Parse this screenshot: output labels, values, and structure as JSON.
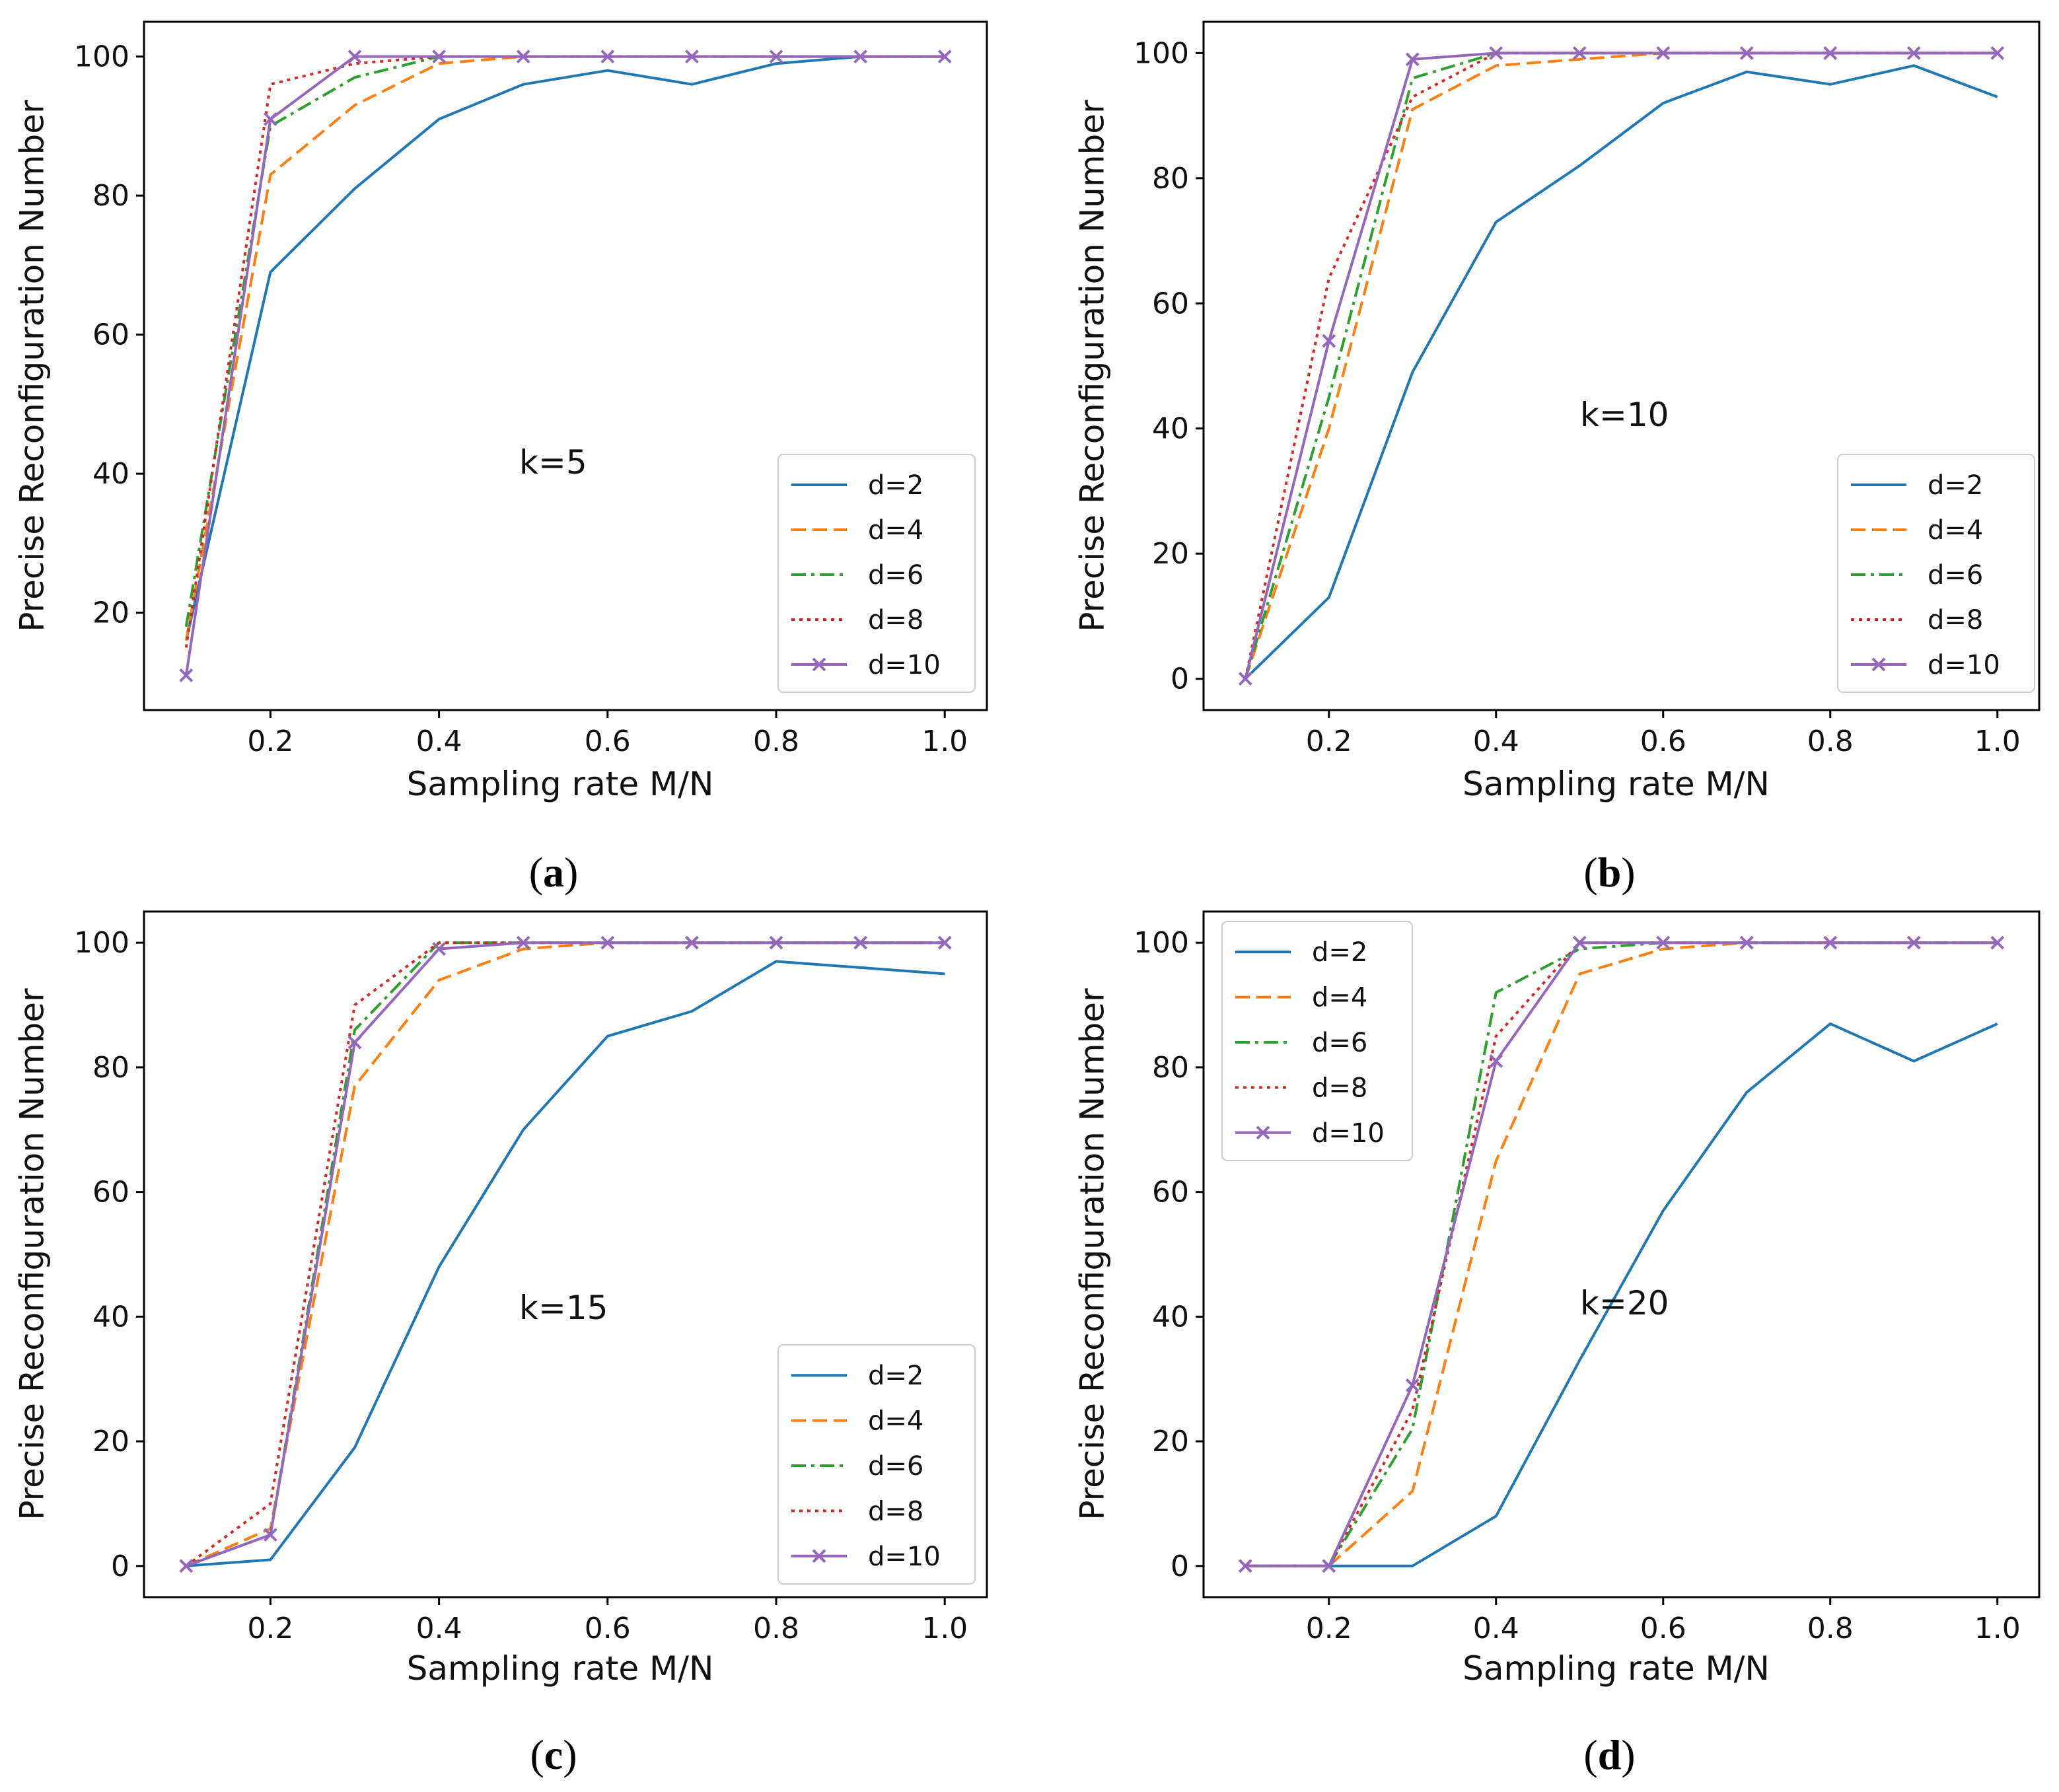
{
  "colors": {
    "d2": "#1f77b4",
    "d4": "#ff7f0e",
    "d6": "#2ca02c",
    "d8": "#d62728",
    "d10": "#9467bd",
    "axis": "#000000",
    "legend_border": "#cccccc"
  },
  "chart_data": [
    {
      "id": "a",
      "type": "line",
      "caption": "a",
      "annotation": "k=5",
      "xlabel": "Sampling rate M/N",
      "ylabel": "Precise Reconfiguration Number",
      "x": [
        0.1,
        0.2,
        0.3,
        0.4,
        0.5,
        0.6,
        0.7,
        0.8,
        0.9,
        1.0
      ],
      "xlim": [
        0.05,
        1.05
      ],
      "ylim": [
        6,
        105
      ],
      "xticks": [
        0.2,
        0.4,
        0.6,
        0.8,
        1.0
      ],
      "xtick_labels": [
        "0.2",
        "0.4",
        "0.6",
        "0.8",
        "1.0"
      ],
      "yticks": [
        20,
        40,
        60,
        80,
        100
      ],
      "ytick_labels": [
        "20",
        "40",
        "60",
        "80",
        "100"
      ],
      "legend_position": "lower-right",
      "series": [
        {
          "name": "d=2",
          "style": "solid",
          "color_key": "d2",
          "values": [
            16,
            69,
            81,
            91,
            96,
            98,
            96,
            99,
            100,
            100
          ]
        },
        {
          "name": "d=4",
          "style": "dashed",
          "color_key": "d4",
          "values": [
            16,
            83,
            93,
            99,
            100,
            100,
            100,
            100,
            100,
            100
          ]
        },
        {
          "name": "d=6",
          "style": "dashdot",
          "color_key": "d6",
          "values": [
            18,
            90,
            97,
            100,
            100,
            100,
            100,
            100,
            100,
            100
          ]
        },
        {
          "name": "d=8",
          "style": "dotted",
          "color_key": "d8",
          "values": [
            15,
            96,
            99,
            100,
            100,
            100,
            100,
            100,
            100,
            100
          ]
        },
        {
          "name": "d=10",
          "style": "solid-x",
          "color_key": "d10",
          "values": [
            11,
            91,
            100,
            100,
            100,
            100,
            100,
            100,
            100,
            100
          ]
        }
      ]
    },
    {
      "id": "b",
      "type": "line",
      "caption": "b",
      "annotation": "k=10",
      "xlabel": "Sampling rate M/N",
      "ylabel": "Precise Reconfiguration Number",
      "x": [
        0.1,
        0.2,
        0.3,
        0.4,
        0.5,
        0.6,
        0.7,
        0.8,
        0.9,
        1.0
      ],
      "xlim": [
        0.05,
        1.05
      ],
      "ylim": [
        -5,
        105
      ],
      "xticks": [
        0.2,
        0.4,
        0.6,
        0.8,
        1.0
      ],
      "xtick_labels": [
        "0.2",
        "0.4",
        "0.6",
        "0.8",
        "1.0"
      ],
      "yticks": [
        0,
        20,
        40,
        60,
        80,
        100
      ],
      "ytick_labels": [
        "0",
        "20",
        "40",
        "60",
        "80",
        "100"
      ],
      "legend_position": "lower-right",
      "series": [
        {
          "name": "d=2",
          "style": "solid",
          "color_key": "d2",
          "values": [
            0,
            13,
            49,
            73,
            82,
            92,
            97,
            95,
            98,
            93
          ]
        },
        {
          "name": "d=4",
          "style": "dashed",
          "color_key": "d4",
          "values": [
            0,
            40,
            91,
            98,
            99,
            100,
            100,
            100,
            100,
            100
          ]
        },
        {
          "name": "d=6",
          "style": "dashdot",
          "color_key": "d6",
          "values": [
            0,
            45,
            96,
            100,
            100,
            100,
            100,
            100,
            100,
            100
          ]
        },
        {
          "name": "d=8",
          "style": "dotted",
          "color_key": "d8",
          "values": [
            0,
            64,
            93,
            100,
            100,
            100,
            100,
            100,
            100,
            100
          ]
        },
        {
          "name": "d=10",
          "style": "solid-x",
          "color_key": "d10",
          "values": [
            0,
            54,
            99,
            100,
            100,
            100,
            100,
            100,
            100,
            100
          ]
        }
      ]
    },
    {
      "id": "c",
      "type": "line",
      "caption": "c",
      "annotation": "k=15",
      "xlabel": "Sampling rate M/N",
      "ylabel": "Precise Reconfiguration Number",
      "x": [
        0.1,
        0.2,
        0.3,
        0.4,
        0.5,
        0.6,
        0.7,
        0.8,
        0.9,
        1.0
      ],
      "xlim": [
        0.05,
        1.05
      ],
      "ylim": [
        -5,
        105
      ],
      "xticks": [
        0.2,
        0.4,
        0.6,
        0.8,
        1.0
      ],
      "xtick_labels": [
        "0.2",
        "0.4",
        "0.6",
        "0.8",
        "1.0"
      ],
      "yticks": [
        0,
        20,
        40,
        60,
        80,
        100
      ],
      "ytick_labels": [
        "0",
        "20",
        "40",
        "60",
        "80",
        "100"
      ],
      "legend_position": "lower-right",
      "series": [
        {
          "name": "d=2",
          "style": "solid",
          "color_key": "d2",
          "values": [
            0,
            1,
            19,
            48,
            70,
            85,
            89,
            97,
            96,
            95
          ]
        },
        {
          "name": "d=4",
          "style": "dashed",
          "color_key": "d4",
          "values": [
            0,
            6,
            77,
            94,
            99,
            100,
            100,
            100,
            100,
            100
          ]
        },
        {
          "name": "d=6",
          "style": "dashdot",
          "color_key": "d6",
          "values": [
            0,
            5,
            86,
            100,
            100,
            100,
            100,
            100,
            100,
            100
          ]
        },
        {
          "name": "d=8",
          "style": "dotted",
          "color_key": "d8",
          "values": [
            0,
            10,
            90,
            100,
            100,
            100,
            100,
            100,
            100,
            100
          ]
        },
        {
          "name": "d=10",
          "style": "solid-x",
          "color_key": "d10",
          "values": [
            0,
            5,
            84,
            99,
            100,
            100,
            100,
            100,
            100,
            100
          ]
        }
      ]
    },
    {
      "id": "d",
      "type": "line",
      "caption": "d",
      "annotation": "k=20",
      "xlabel": "Sampling rate M/N",
      "ylabel": "Precise Reconfiguration Number",
      "x": [
        0.1,
        0.2,
        0.3,
        0.4,
        0.5,
        0.6,
        0.7,
        0.8,
        0.9,
        1.0
      ],
      "xlim": [
        0.05,
        1.05
      ],
      "ylim": [
        -5,
        105
      ],
      "xticks": [
        0.2,
        0.4,
        0.6,
        0.8,
        1.0
      ],
      "xtick_labels": [
        "0.2",
        "0.4",
        "0.6",
        "0.8",
        "1.0"
      ],
      "yticks": [
        0,
        20,
        40,
        60,
        80,
        100
      ],
      "ytick_labels": [
        "0",
        "20",
        "40",
        "60",
        "80",
        "100"
      ],
      "legend_position": "upper-left",
      "series": [
        {
          "name": "d=2",
          "style": "solid",
          "color_key": "d2",
          "values": [
            0,
            0,
            0,
            8,
            33,
            57,
            76,
            87,
            81,
            87
          ]
        },
        {
          "name": "d=4",
          "style": "dashed",
          "color_key": "d4",
          "values": [
            0,
            0,
            12,
            65,
            95,
            99,
            100,
            100,
            100,
            100
          ]
        },
        {
          "name": "d=6",
          "style": "dashdot",
          "color_key": "d6",
          "values": [
            0,
            0,
            22,
            92,
            99,
            100,
            100,
            100,
            100,
            100
          ]
        },
        {
          "name": "d=8",
          "style": "dotted",
          "color_key": "d8",
          "values": [
            0,
            0,
            25,
            85,
            100,
            100,
            100,
            100,
            100,
            100
          ]
        },
        {
          "name": "d=10",
          "style": "solid-x",
          "color_key": "d10",
          "values": [
            0,
            0,
            29,
            81,
            100,
            100,
            100,
            100,
            100,
            100
          ]
        }
      ]
    }
  ]
}
